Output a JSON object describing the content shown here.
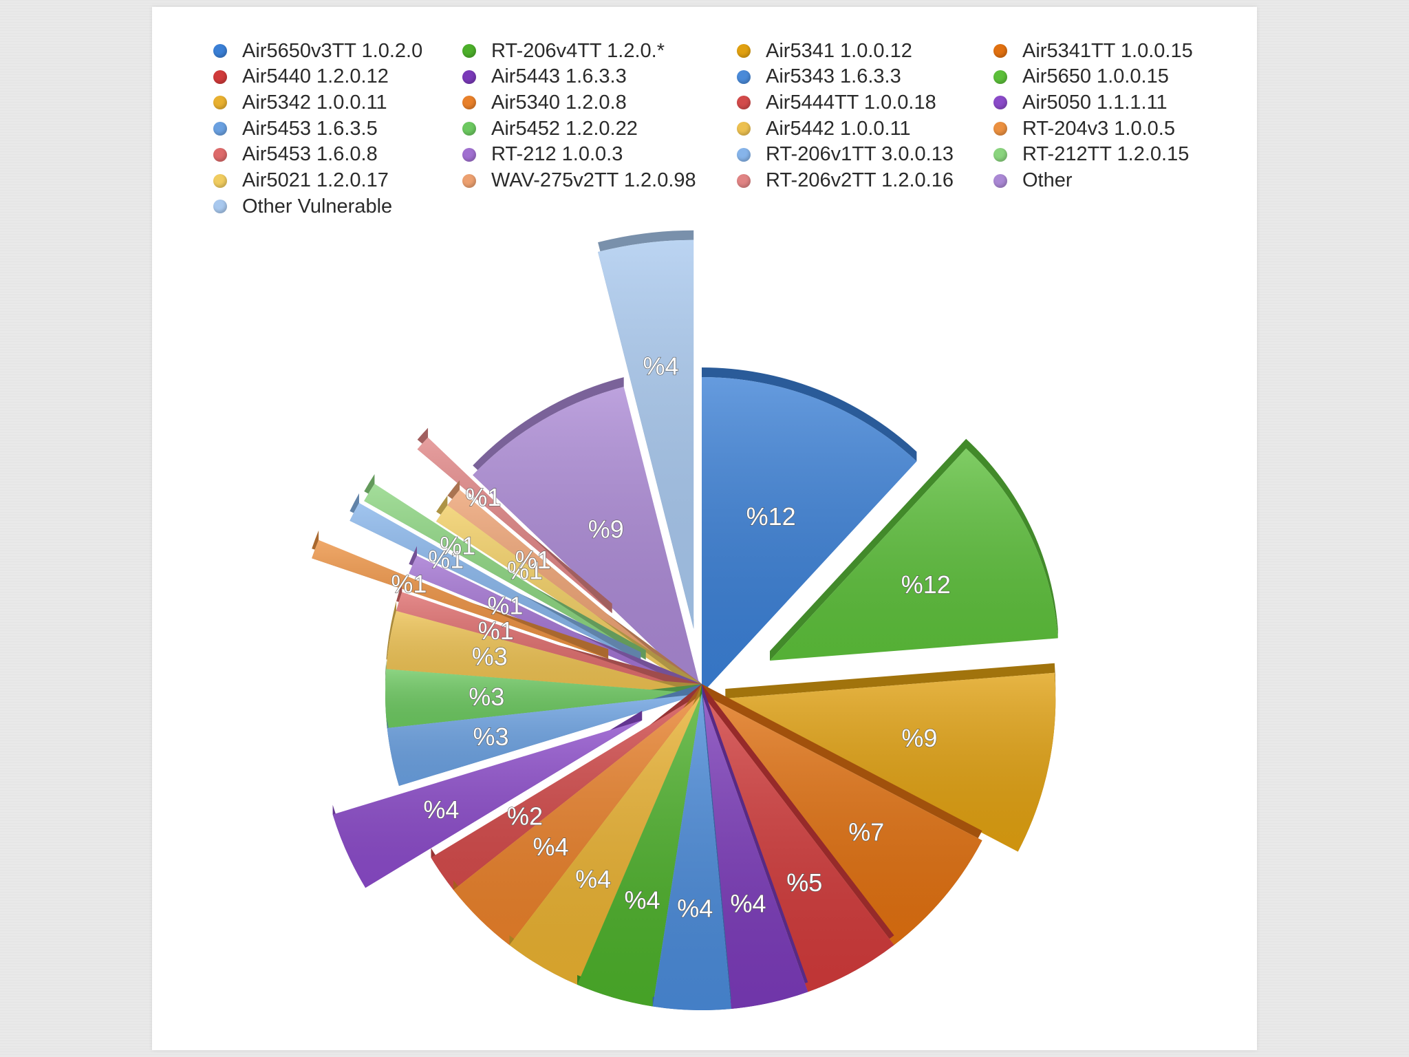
{
  "chart_data": {
    "type": "pie",
    "labels": [
      "Air5650v3TT 1.0.2.0",
      "RT-206v4TT 1.2.0.*",
      "Air5341 1.0.0.12",
      "Air5341TT 1.0.0.15",
      "Air5440 1.2.0.12",
      "Air5443 1.6.3.3",
      "Air5343 1.6.3.3",
      "Air5650 1.0.0.15",
      "Air5342 1.0.0.11",
      "Air5340 1.2.0.8",
      "Air5444TT 1.0.0.18",
      "Air5050 1.1.1.11",
      "Air5453 1.6.3.5",
      "Air5452 1.2.0.22",
      "Air5442 1.0.0.11",
      "RT-204v3 1.0.0.5",
      "Air5453 1.6.0.8",
      "RT-212 1.0.0.3",
      "RT-206v1TT 3.0.0.13",
      "RT-212TT 1.2.0.15",
      "Air5021 1.2.0.17",
      "WAV-275v2TT 1.2.0.98",
      "RT-206v2TT 1.2.0.16",
      "Other",
      "Other Vulnerable"
    ],
    "colors": [
      "#3a7fd5",
      "#4caf2a",
      "#e0a010",
      "#e07010",
      "#d03a3a",
      "#7a3ab8",
      "#4a8ad8",
      "#5cbf3a",
      "#e8b030",
      "#e8802a",
      "#d24a4a",
      "#8a4ac8",
      "#6aa0e0",
      "#6cc860",
      "#ecc050",
      "#eb9040",
      "#dd6a6a",
      "#a070d0",
      "#86b4ea",
      "#8ad47e",
      "#f0cc60",
      "#eca070",
      "#e08484",
      "#aa88d4",
      "#a8c8ee"
    ],
    "slices_clockwise_from_top": [
      {
        "label": "Air5650v3TT 1.0.2.0",
        "value": 12,
        "display": "%12"
      },
      {
        "label": "Air5650 1.0.0.15",
        "value": 12,
        "display": "%12"
      },
      {
        "label": "Air5341 1.0.0.12",
        "value": 9,
        "display": "%9"
      },
      {
        "label": "Air5341TT 1.0.0.15",
        "value": 7,
        "display": "%7"
      },
      {
        "label": "Air5440 1.2.0.12",
        "value": 5,
        "display": "%5"
      },
      {
        "label": "Air5443 1.6.3.3",
        "value": 4,
        "display": "%4"
      },
      {
        "label": "Air5343 1.6.3.3",
        "value": 4,
        "display": "%4"
      },
      {
        "label": "RT-206v4TT 1.2.0.*",
        "value": 4,
        "display": "%4"
      },
      {
        "label": "Air5342 1.0.0.11",
        "value": 4,
        "display": "%4"
      },
      {
        "label": "Air5340 1.2.0.8",
        "value": 4,
        "display": "%4"
      },
      {
        "label": "Air5444TT 1.0.0.18",
        "value": 2,
        "display": "%2"
      },
      {
        "label": "Air5050 1.1.1.11",
        "value": 4,
        "display": "%4"
      },
      {
        "label": "Air5453 1.6.3.5",
        "value": 3,
        "display": "%3"
      },
      {
        "label": "Air5452 1.2.0.22",
        "value": 3,
        "display": "%3"
      },
      {
        "label": "Air5442 1.0.0.11",
        "value": 3,
        "display": "%3"
      },
      {
        "label": "Air5453 1.6.0.8",
        "value": 1,
        "display": "%1"
      },
      {
        "label": "RT-204v3 1.0.0.5",
        "value": 1,
        "display": "%1"
      },
      {
        "label": "RT-212 1.0.0.3",
        "value": 1,
        "display": "%1"
      },
      {
        "label": "RT-206v1TT 3.0.0.13",
        "value": 1,
        "display": "%1"
      },
      {
        "label": "RT-212TT 1.2.0.15",
        "value": 1,
        "display": "%1"
      },
      {
        "label": "Air5021 1.2.0.17",
        "value": 1,
        "display": "%1"
      },
      {
        "label": "WAV-275v2TT 1.2.0.98",
        "value": 1,
        "display": "%1"
      },
      {
        "label": "RT-206v2TT 1.2.0.16",
        "value": 1,
        "display": "%1"
      },
      {
        "label": "Other",
        "value": 9,
        "display": "%9"
      },
      {
        "label": "Other Vulnerable",
        "value": 4,
        "display": "%4"
      }
    ],
    "exploded": [
      "Air5650 1.0.0.15",
      "Air5341 1.0.0.12",
      "RT-204v3 1.0.0.5",
      "Air5050 1.1.1.11",
      "RT-206v1TT 3.0.0.13",
      "RT-212TT 1.2.0.15",
      "RT-206v2TT 1.2.0.16",
      "Other Vulnerable"
    ],
    "legend_position": "top",
    "legend_columns": 4,
    "style": "3d"
  }
}
